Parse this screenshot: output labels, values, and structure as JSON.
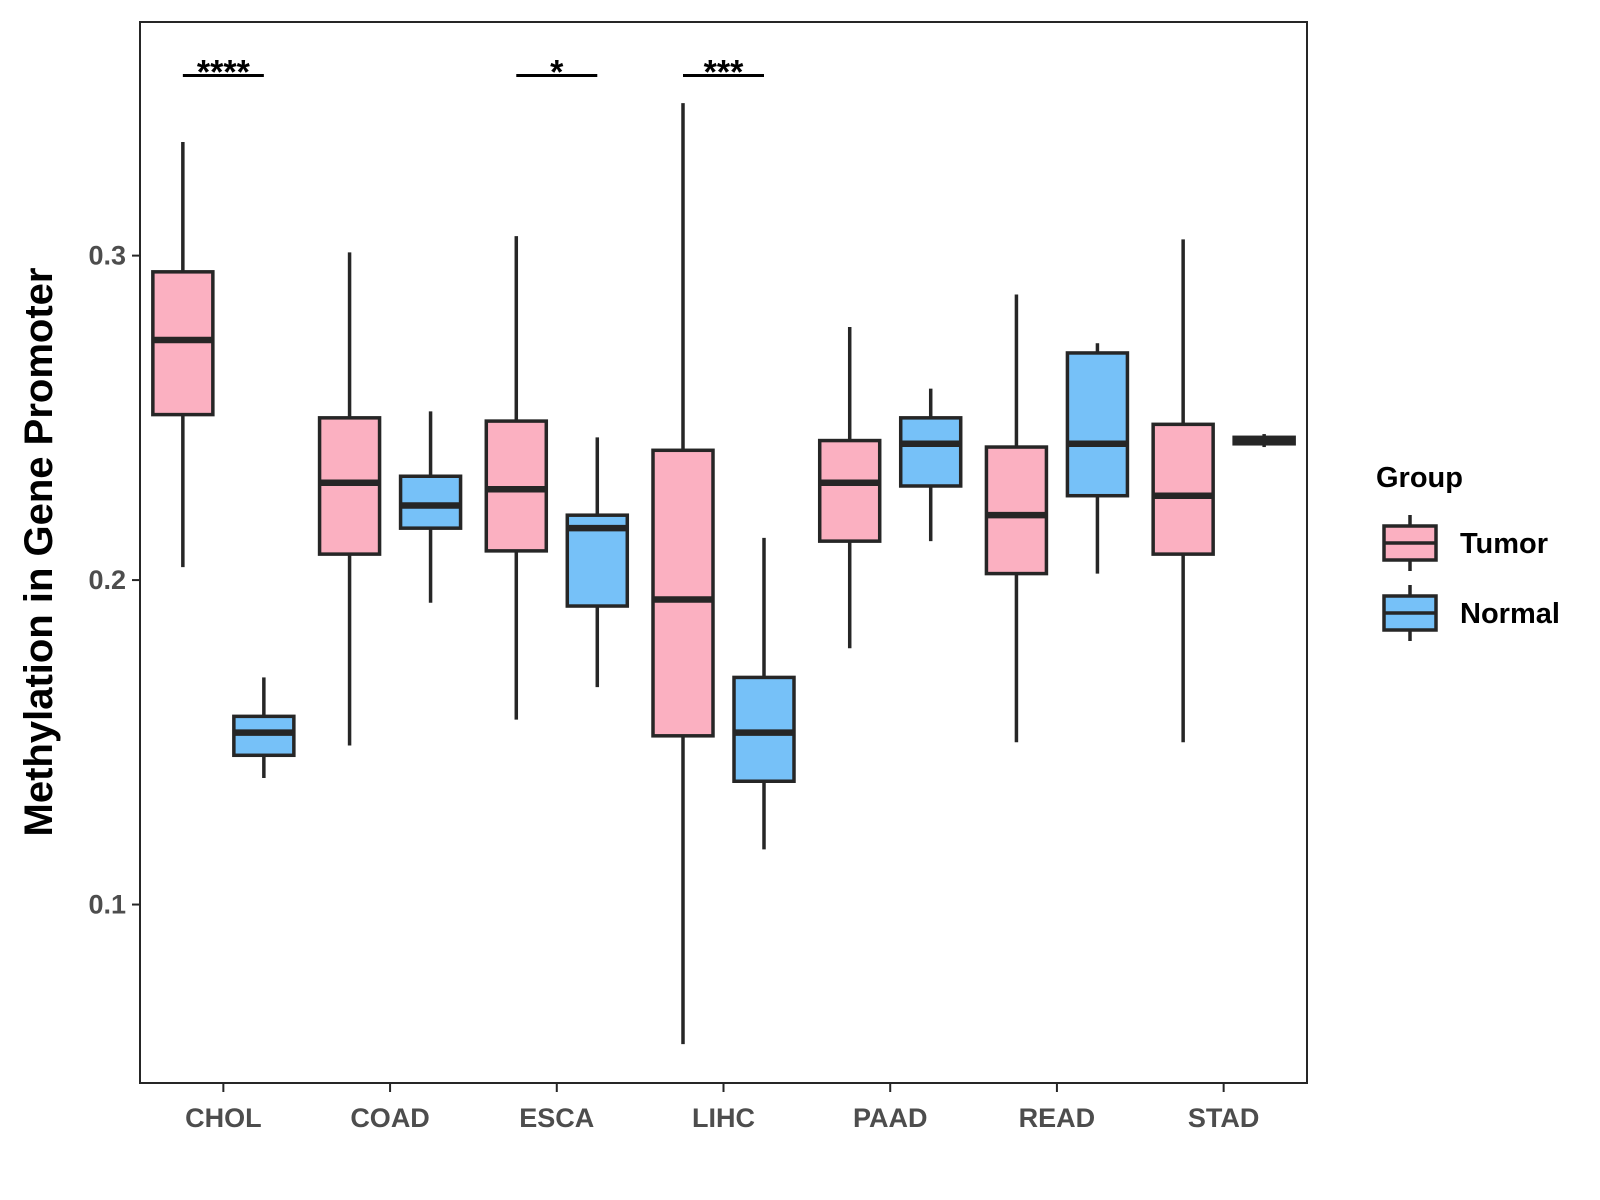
{
  "chart_data": {
    "type": "boxplot",
    "title": "",
    "xlabel": "",
    "ylabel": "Methylation in Gene Promoter",
    "ylim": [
      0.045,
      0.372
    ],
    "yticks": [
      0.1,
      0.2,
      0.3
    ],
    "ytick_labels": [
      "0.1",
      "0.2",
      "0.3"
    ],
    "categories": [
      "CHOL",
      "COAD",
      "ESCA",
      "LIHC",
      "PAAD",
      "READ",
      "STAD"
    ],
    "legend": {
      "title": "Group",
      "position": "right",
      "entries": [
        "Tumor",
        "Normal"
      ]
    },
    "colors": {
      "Tumor": "#fbb0c1",
      "Normal": "#76c1f8",
      "stroke": "#262626"
    },
    "series": [
      {
        "name": "Tumor",
        "boxes": [
          {
            "whislo": 0.204,
            "q1": 0.251,
            "med": 0.274,
            "q3": 0.295,
            "whishi": 0.335
          },
          {
            "whislo": 0.149,
            "q1": 0.208,
            "med": 0.23,
            "q3": 0.25,
            "whishi": 0.301
          },
          {
            "whislo": 0.157,
            "q1": 0.209,
            "med": 0.228,
            "q3": 0.249,
            "whishi": 0.306
          },
          {
            "whislo": 0.057,
            "q1": 0.152,
            "med": 0.194,
            "q3": 0.24,
            "whishi": 0.347
          },
          {
            "whislo": 0.179,
            "q1": 0.212,
            "med": 0.23,
            "q3": 0.243,
            "whishi": 0.278
          },
          {
            "whislo": 0.15,
            "q1": 0.202,
            "med": 0.22,
            "q3": 0.241,
            "whishi": 0.288
          },
          {
            "whislo": 0.15,
            "q1": 0.208,
            "med": 0.226,
            "q3": 0.248,
            "whishi": 0.305
          }
        ]
      },
      {
        "name": "Normal",
        "boxes": [
          {
            "whislo": 0.139,
            "q1": 0.146,
            "med": 0.153,
            "q3": 0.158,
            "whishi": 0.17
          },
          {
            "whislo": 0.193,
            "q1": 0.216,
            "med": 0.223,
            "q3": 0.232,
            "whishi": 0.252
          },
          {
            "whislo": 0.167,
            "q1": 0.192,
            "med": 0.216,
            "q3": 0.22,
            "whishi": 0.244
          },
          {
            "whislo": 0.117,
            "q1": 0.138,
            "med": 0.153,
            "q3": 0.17,
            "whishi": 0.213
          },
          {
            "whislo": 0.212,
            "q1": 0.229,
            "med": 0.242,
            "q3": 0.25,
            "whishi": 0.259
          },
          {
            "whislo": 0.202,
            "q1": 0.226,
            "med": 0.242,
            "q3": 0.27,
            "whishi": 0.273
          },
          {
            "whislo": 0.241,
            "q1": 0.242,
            "med": 0.243,
            "q3": 0.244,
            "whishi": 0.245
          }
        ]
      }
    ],
    "significance": [
      {
        "category": "CHOL",
        "label": "****",
        "y": 0.3555
      },
      {
        "category": "ESCA",
        "label": "*",
        "y": 0.3555
      },
      {
        "category": "LIHC",
        "label": "***",
        "y": 0.3555
      }
    ]
  }
}
